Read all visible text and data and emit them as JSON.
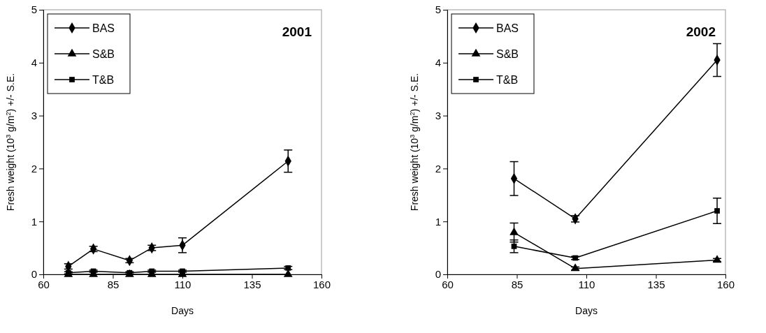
{
  "chart_data": [
    {
      "type": "line",
      "title": "2001",
      "xlabel": "Days",
      "ylabel": "Fresh weight (10$^{3}$ g/m$^{2}$) +/- S.E.",
      "x": [
        69,
        78,
        91,
        99,
        110,
        148
      ],
      "xlim": [
        60,
        160
      ],
      "xticks": [
        60,
        85,
        110,
        135,
        160
      ],
      "ylim": [
        0,
        5
      ],
      "yticks": [
        0,
        1,
        2,
        3,
        4,
        5
      ],
      "grid": false,
      "legend": "top left",
      "line_style": "solid",
      "series": [
        {
          "name": "BAS",
          "color": "#000000",
          "marker": "diamond",
          "values": [
            0.15,
            0.48,
            0.26,
            0.5,
            0.55,
            2.14
          ],
          "errors": [
            0.05,
            0.05,
            0.04,
            0.05,
            0.14,
            0.21
          ]
        },
        {
          "name": "S&B",
          "color": "#000000",
          "marker": "triangle",
          "values": [
            0,
            0,
            0,
            0,
            0,
            0
          ]
        },
        {
          "name": "T&B",
          "color": "#000000",
          "marker": "square",
          "values": [
            0.03,
            0.06,
            0.03,
            0.06,
            0.06,
            0.12
          ],
          "errors": [
            0.02,
            0.02,
            0.02,
            0.02,
            0.02,
            0.03
          ]
        }
      ]
    },
    {
      "type": "line",
      "title": "2002",
      "xlabel": "Days",
      "ylabel": "Fresh weight (10$^{3}$ g/m$^{2}$) +/- S.E.",
      "x": [
        84,
        106,
        157
      ],
      "xlim": [
        60,
        160
      ],
      "xticks": [
        60,
        85,
        110,
        135,
        160
      ],
      "ylim": [
        0,
        5
      ],
      "yticks": [
        0,
        1,
        2,
        3,
        4,
        5
      ],
      "grid": false,
      "legend": "top left",
      "line_style": "solid",
      "series": [
        {
          "name": "BAS",
          "color": "#000000",
          "marker": "diamond",
          "values": [
            1.81,
            1.05,
            4.05
          ],
          "errors": [
            0.32,
            0.06,
            0.31
          ]
        },
        {
          "name": "S&B",
          "color": "#000000",
          "marker": "triangle",
          "values": [
            0.79,
            0.11,
            0.27
          ],
          "errors": [
            0.18,
            0.03,
            0.03
          ]
        },
        {
          "name": "T&B",
          "color": "#000000",
          "marker": "square",
          "values": [
            0.53,
            0.31,
            1.2
          ],
          "errors": [
            0.12,
            0.03,
            0.24
          ]
        }
      ]
    }
  ]
}
